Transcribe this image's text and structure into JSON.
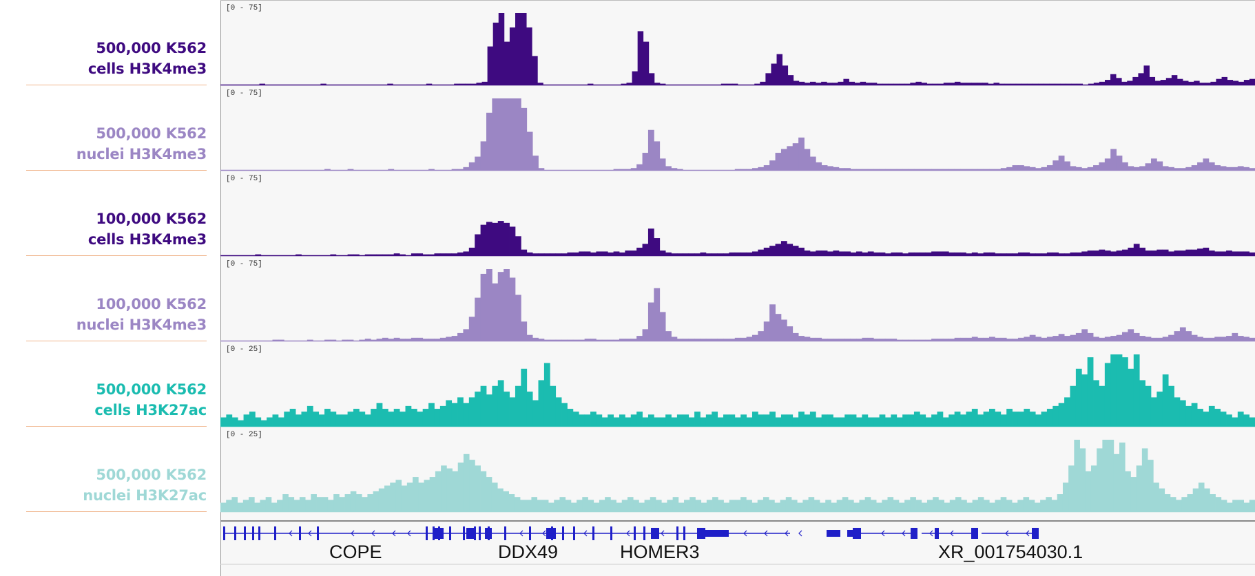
{
  "tracks": [
    {
      "line1": "500,000 K562",
      "line2": "cells H3K4me3",
      "range": "[0 - 75]",
      "color": "#3e0a80",
      "max": 75,
      "values": [
        0,
        0,
        0,
        0,
        0,
        0,
        0,
        1,
        0,
        0,
        0,
        0,
        0,
        0,
        0,
        0,
        0,
        0,
        1,
        0,
        0,
        0,
        0,
        0,
        0,
        0,
        0,
        0,
        0,
        0,
        1,
        0,
        0,
        0,
        0,
        0,
        0,
        1,
        0,
        0,
        0,
        0,
        1,
        1,
        1,
        1,
        2,
        3,
        40,
        65,
        78,
        45,
        60,
        76,
        80,
        60,
        30,
        2,
        0,
        0,
        0,
        0,
        0,
        0,
        0,
        0,
        1,
        0,
        0,
        0,
        0,
        0,
        1,
        2,
        14,
        56,
        45,
        12,
        2,
        1,
        0,
        0,
        0,
        0,
        0,
        0,
        0,
        0,
        0,
        0,
        1,
        1,
        1,
        0,
        0,
        0,
        1,
        3,
        12,
        22,
        32,
        20,
        10,
        4,
        3,
        2,
        3,
        2,
        3,
        2,
        2,
        3,
        6,
        3,
        2,
        3,
        2,
        2,
        1,
        1,
        1,
        1,
        1,
        1,
        2,
        3,
        2,
        1,
        1,
        1,
        2,
        2,
        3,
        2,
        2,
        2,
        2,
        2,
        1,
        2,
        1,
        1,
        1,
        1,
        1,
        1,
        1,
        1,
        1,
        1,
        1,
        1,
        1,
        1,
        1,
        0,
        1,
        2,
        3,
        5,
        11,
        7,
        3,
        4,
        8,
        12,
        20,
        8,
        4,
        5,
        7,
        10,
        6,
        4,
        3,
        4,
        2,
        2,
        3,
        6,
        8,
        5,
        4,
        3,
        5,
        6
      ]
    },
    {
      "line1": "500,000 K562",
      "line2": "nuclei H3K4me3",
      "range": "[0 - 75]",
      "color": "#9b86c4",
      "max": 75,
      "values": [
        0,
        0,
        0,
        0,
        0,
        0,
        0,
        0,
        0,
        0,
        0,
        0,
        0,
        0,
        0,
        0,
        0,
        0,
        1,
        0,
        0,
        0,
        1,
        0,
        0,
        0,
        0,
        0,
        0,
        1,
        0,
        0,
        0,
        0,
        0,
        0,
        1,
        0,
        0,
        0,
        1,
        1,
        3,
        8,
        14,
        30,
        60,
        95,
        110,
        98,
        102,
        100,
        65,
        40,
        15,
        2,
        0,
        0,
        0,
        0,
        0,
        0,
        0,
        0,
        0,
        0,
        0,
        0,
        1,
        1,
        1,
        2,
        6,
        18,
        42,
        30,
        12,
        4,
        2,
        1,
        0,
        0,
        0,
        0,
        0,
        0,
        0,
        0,
        0,
        1,
        1,
        1,
        2,
        3,
        5,
        10,
        18,
        22,
        25,
        28,
        34,
        22,
        14,
        8,
        5,
        4,
        3,
        2,
        2,
        1,
        1,
        1,
        1,
        1,
        1,
        1,
        1,
        1,
        1,
        1,
        1,
        1,
        1,
        1,
        1,
        1,
        1,
        1,
        1,
        1,
        1,
        1,
        1,
        1,
        1,
        2,
        3,
        5,
        5,
        4,
        3,
        2,
        3,
        5,
        10,
        15,
        9,
        4,
        3,
        2,
        3,
        5,
        8,
        12,
        22,
        15,
        8,
        4,
        3,
        4,
        7,
        12,
        9,
        4,
        3,
        2,
        2,
        3,
        5,
        8,
        12,
        8,
        5,
        4,
        3,
        3,
        4,
        3,
        2
      ]
    },
    {
      "line1": "100,000 K562",
      "line2": "cells H3K4me3",
      "range": "[0 - 75]",
      "color": "#3e0a80",
      "max": 75,
      "values": [
        0,
        0,
        0,
        0,
        0,
        0,
        1,
        0,
        0,
        0,
        0,
        0,
        0,
        1,
        0,
        0,
        0,
        0,
        0,
        1,
        0,
        0,
        1,
        1,
        0,
        1,
        1,
        1,
        1,
        1,
        2,
        1,
        0,
        2,
        2,
        1,
        1,
        2,
        2,
        2,
        2,
        3,
        4,
        8,
        22,
        32,
        35,
        34,
        36,
        34,
        30,
        20,
        6,
        3,
        2,
        2,
        2,
        2,
        2,
        2,
        3,
        3,
        4,
        4,
        3,
        4,
        4,
        3,
        4,
        3,
        5,
        5,
        8,
        12,
        28,
        18,
        5,
        3,
        2,
        2,
        2,
        2,
        2,
        3,
        2,
        2,
        2,
        2,
        3,
        3,
        3,
        3,
        4,
        6,
        8,
        10,
        12,
        15,
        12,
        10,
        8,
        5,
        4,
        5,
        5,
        4,
        5,
        4,
        4,
        3,
        4,
        3,
        4,
        3,
        3,
        2,
        3,
        3,
        2,
        3,
        3,
        3,
        3,
        4,
        4,
        4,
        3,
        3,
        3,
        2,
        3,
        2,
        3,
        3,
        2,
        2,
        2,
        2,
        3,
        3,
        2,
        2,
        2,
        3,
        3,
        2,
        2,
        3,
        3,
        4,
        5,
        5,
        6,
        5,
        4,
        5,
        6,
        8,
        12,
        8,
        5,
        5,
        6,
        6,
        4,
        5,
        5,
        6,
        6,
        7,
        8,
        5,
        4,
        4,
        5,
        4,
        4,
        4,
        3
      ]
    },
    {
      "line1": "100,000 K562",
      "line2": "nuclei H3K4me3",
      "range": "[0 - 75]",
      "color": "#9b86c4",
      "max": 75,
      "values": [
        0,
        0,
        0,
        0,
        0,
        0,
        0,
        0,
        0,
        1,
        1,
        0,
        0,
        0,
        0,
        1,
        0,
        0,
        1,
        1,
        0,
        1,
        1,
        0,
        1,
        2,
        1,
        2,
        3,
        2,
        3,
        2,
        2,
        3,
        3,
        2,
        2,
        2,
        3,
        4,
        5,
        8,
        12,
        25,
        45,
        70,
        78,
        60,
        72,
        84,
        66,
        48,
        20,
        6,
        3,
        2,
        1,
        1,
        1,
        1,
        1,
        1,
        1,
        2,
        2,
        1,
        1,
        1,
        1,
        2,
        2,
        2,
        5,
        12,
        40,
        55,
        30,
        10,
        4,
        2,
        2,
        2,
        2,
        2,
        2,
        2,
        2,
        2,
        2,
        3,
        3,
        4,
        6,
        10,
        20,
        38,
        28,
        22,
        15,
        8,
        5,
        4,
        3,
        3,
        2,
        2,
        2,
        2,
        2,
        2,
        2,
        3,
        3,
        2,
        2,
        2,
        2,
        1,
        1,
        1,
        1,
        1,
        1,
        2,
        2,
        2,
        2,
        3,
        3,
        3,
        4,
        3,
        3,
        4,
        3,
        3,
        2,
        2,
        3,
        4,
        6,
        4,
        3,
        4,
        5,
        7,
        5,
        6,
        8,
        12,
        8,
        4,
        3,
        4,
        5,
        6,
        9,
        12,
        8,
        5,
        4,
        3,
        3,
        4,
        6,
        10,
        14,
        10,
        6,
        4,
        3,
        3,
        4,
        4,
        5,
        8,
        5,
        4,
        3
      ]
    },
    {
      "line1": "500,000 K562",
      "line2": "cells H3K27ac",
      "range": "[0 - 25]",
      "color": "#1bbcb0",
      "max": 25,
      "values": [
        3,
        4,
        3,
        2,
        4,
        5,
        3,
        2,
        3,
        4,
        3,
        5,
        6,
        4,
        5,
        7,
        5,
        4,
        6,
        5,
        4,
        4,
        5,
        6,
        5,
        4,
        6,
        8,
        6,
        5,
        6,
        5,
        7,
        6,
        5,
        6,
        8,
        6,
        7,
        9,
        8,
        10,
        8,
        10,
        12,
        14,
        11,
        14,
        16,
        12,
        10,
        14,
        20,
        12,
        9,
        16,
        22,
        14,
        10,
        8,
        6,
        5,
        4,
        4,
        5,
        4,
        3,
        4,
        3,
        4,
        3,
        4,
        5,
        3,
        4,
        3,
        3,
        4,
        3,
        4,
        4,
        3,
        5,
        3,
        4,
        5,
        3,
        4,
        4,
        3,
        4,
        3,
        5,
        4,
        4,
        5,
        3,
        4,
        4,
        3,
        5,
        4,
        5,
        3,
        4,
        4,
        3,
        3,
        4,
        4,
        3,
        4,
        3,
        3,
        4,
        3,
        4,
        3,
        4,
        4,
        5,
        4,
        3,
        4,
        5,
        3,
        4,
        5,
        4,
        5,
        6,
        4,
        5,
        6,
        5,
        4,
        6,
        5,
        5,
        6,
        5,
        4,
        5,
        6,
        7,
        8,
        10,
        14,
        20,
        18,
        24,
        16,
        14,
        22,
        30,
        34,
        24,
        20,
        26,
        16,
        14,
        10,
        12,
        18,
        14,
        10,
        9,
        7,
        8,
        6,
        5,
        7,
        6,
        5,
        4,
        3,
        5,
        4,
        3
      ]
    },
    {
      "line1": "500,000 K562",
      "line2": "nuclei H3K27ac",
      "range": "[0 - 25]",
      "color": "#9fd8d6",
      "max": 25,
      "values": [
        3,
        4,
        5,
        3,
        4,
        5,
        3,
        4,
        5,
        3,
        4,
        6,
        5,
        4,
        5,
        4,
        6,
        5,
        5,
        4,
        6,
        5,
        6,
        7,
        6,
        5,
        6,
        7,
        8,
        9,
        10,
        11,
        9,
        10,
        12,
        10,
        11,
        12,
        14,
        16,
        15,
        14,
        17,
        20,
        18,
        16,
        14,
        12,
        10,
        8,
        7,
        6,
        5,
        4,
        4,
        5,
        4,
        4,
        3,
        4,
        5,
        4,
        3,
        4,
        5,
        4,
        3,
        4,
        5,
        4,
        3,
        4,
        5,
        4,
        3,
        4,
        5,
        4,
        3,
        4,
        5,
        3,
        4,
        5,
        4,
        3,
        4,
        5,
        4,
        3,
        4,
        4,
        5,
        4,
        3,
        4,
        5,
        4,
        3,
        4,
        5,
        4,
        3,
        4,
        5,
        4,
        3,
        4,
        3,
        4,
        5,
        4,
        3,
        4,
        5,
        4,
        3,
        4,
        5,
        4,
        3,
        4,
        5,
        4,
        3,
        4,
        5,
        4,
        3,
        4,
        5,
        4,
        3,
        4,
        5,
        4,
        3,
        4,
        5,
        4,
        3,
        4,
        5,
        4,
        3,
        4,
        5,
        4,
        6,
        10,
        16,
        28,
        22,
        14,
        16,
        22,
        30,
        26,
        20,
        24,
        14,
        12,
        16,
        22,
        18,
        10,
        8,
        6,
        5,
        4,
        5,
        6,
        8,
        10,
        8,
        6,
        5,
        4,
        3,
        4,
        4,
        3,
        4
      ]
    }
  ],
  "genes": [
    {
      "name": "COPE"
    },
    {
      "name": "DDX49"
    },
    {
      "name": "HOMER3"
    },
    {
      "name": "XR_001754030.1"
    }
  ],
  "label_divider_color": "#f0b48a",
  "gene_color": "#1f1fc8",
  "chart_data": {
    "type": "bar",
    "series": [
      {
        "name": "500,000 K562 cells H3K4me3"
      },
      {
        "name": "500,000 K562 nuclei H3K4me3"
      },
      {
        "name": "100,000 K562 cells H3K4me3"
      },
      {
        "name": "100,000 K562 nuclei H3K4me3"
      },
      {
        "name": "500,000 K562 cells H3K27ac"
      },
      {
        "name": "500,000 K562 nuclei H3K27ac"
      }
    ],
    "ranges": [
      "[0 - 75]",
      "[0 - 75]",
      "[0 - 75]",
      "[0 - 75]",
      "[0 - 25]",
      "[0 - 25]"
    ],
    "genes": [
      "COPE",
      "DDX49",
      "HOMER3",
      "XR_001754030.1"
    ]
  }
}
